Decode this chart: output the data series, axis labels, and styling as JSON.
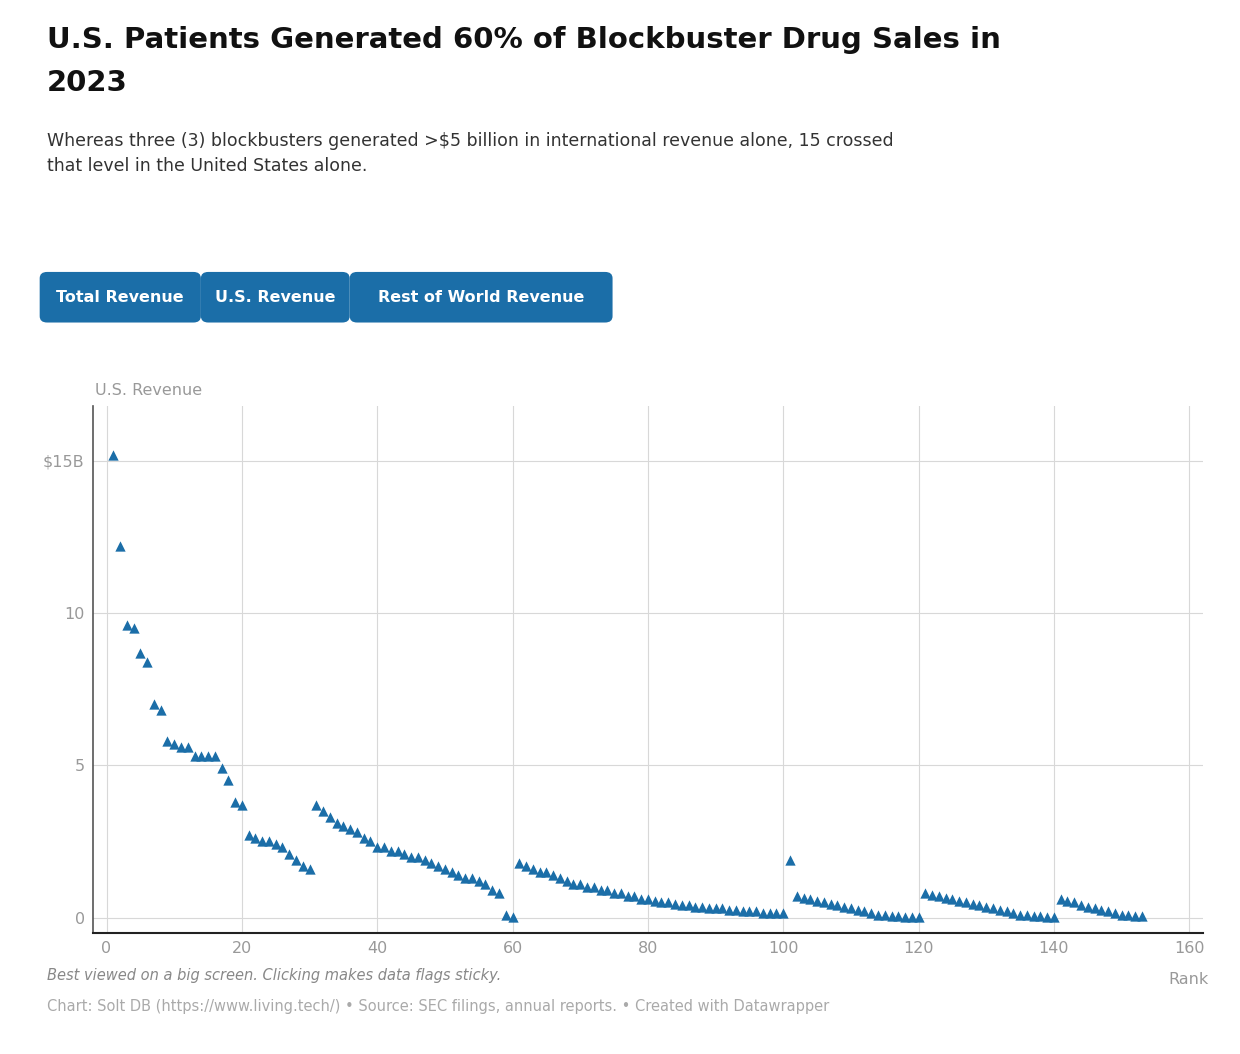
{
  "title_line1": "U.S. Patients Generated 60% of Blockbuster Drug Sales in",
  "title_line2": "2023",
  "subtitle": "Whereas three (3) blockbusters generated >$5 billion in international revenue alone, 15 crossed\nthat level in the United States alone.",
  "ylabel": "U.S. Revenue",
  "xlabel": "Rank",
  "legend_labels": [
    "Total Revenue",
    "U.S. Revenue",
    "Rest of World Revenue"
  ],
  "legend_color": "#1b6ea8",
  "marker_color": "#1b6ea8",
  "background_color": "#ffffff",
  "grid_color": "#d8d8d8",
  "axis_label_color": "#999999",
  "footer_italic": "Best viewed on a big screen. Clicking makes data flags sticky.",
  "footer_source": "Chart: Solt DB (https://www.living.tech/) • Source: SEC filings, annual reports. • Created with Datawrapper",
  "xlim": [
    -2,
    162
  ],
  "ylim": [
    -0.5,
    16.8
  ],
  "yticks": [
    0,
    5,
    10,
    15
  ],
  "ytick_labels": [
    "0",
    "5",
    "10",
    "$15B"
  ],
  "xticks": [
    0,
    20,
    40,
    60,
    80,
    100,
    120,
    140,
    160
  ],
  "x_data": [
    1,
    2,
    3,
    4,
    5,
    6,
    7,
    8,
    9,
    10,
    11,
    12,
    13,
    14,
    15,
    16,
    17,
    18,
    19,
    20,
    21,
    22,
    23,
    24,
    25,
    26,
    27,
    28,
    29,
    30,
    31,
    32,
    33,
    34,
    35,
    36,
    37,
    38,
    39,
    40,
    41,
    42,
    43,
    44,
    45,
    46,
    47,
    48,
    49,
    50,
    51,
    52,
    53,
    54,
    55,
    56,
    57,
    58,
    59,
    60,
    61,
    62,
    63,
    64,
    65,
    66,
    67,
    68,
    69,
    70,
    71,
    72,
    73,
    74,
    75,
    76,
    77,
    78,
    79,
    80,
    81,
    82,
    83,
    84,
    85,
    86,
    87,
    88,
    89,
    90,
    91,
    92,
    93,
    94,
    95,
    96,
    97,
    98,
    99,
    100,
    101,
    102,
    103,
    104,
    105,
    106,
    107,
    108,
    109,
    110,
    111,
    112,
    113,
    114,
    115,
    116,
    117,
    118,
    119,
    120,
    121,
    122,
    123,
    124,
    125,
    126,
    127,
    128,
    129,
    130,
    131,
    132,
    133,
    134,
    135,
    136,
    137,
    138,
    139,
    140,
    141,
    142,
    143,
    144,
    145,
    146,
    147,
    148,
    149,
    150,
    151,
    152,
    153
  ],
  "y_data": [
    15.2,
    12.2,
    9.6,
    9.5,
    8.7,
    8.4,
    7.0,
    6.8,
    5.8,
    5.7,
    5.6,
    5.6,
    5.3,
    5.3,
    5.3,
    5.3,
    4.9,
    4.5,
    3.8,
    3.7,
    2.7,
    2.6,
    2.5,
    2.5,
    2.4,
    2.3,
    2.1,
    1.9,
    1.7,
    1.6,
    3.7,
    3.5,
    3.3,
    3.1,
    3.0,
    2.9,
    2.8,
    2.6,
    2.5,
    2.3,
    2.3,
    2.2,
    2.2,
    2.1,
    2.0,
    2.0,
    1.9,
    1.8,
    1.7,
    1.6,
    1.5,
    1.4,
    1.3,
    1.3,
    1.2,
    1.1,
    0.9,
    0.8,
    0.1,
    0.02,
    1.8,
    1.7,
    1.6,
    1.5,
    1.5,
    1.4,
    1.3,
    1.2,
    1.1,
    1.1,
    1.0,
    1.0,
    0.9,
    0.9,
    0.8,
    0.8,
    0.7,
    0.7,
    0.6,
    0.6,
    0.55,
    0.5,
    0.5,
    0.45,
    0.4,
    0.4,
    0.35,
    0.35,
    0.3,
    0.3,
    0.3,
    0.25,
    0.25,
    0.2,
    0.2,
    0.2,
    0.15,
    0.15,
    0.15,
    0.15,
    1.9,
    0.7,
    0.65,
    0.6,
    0.55,
    0.5,
    0.45,
    0.4,
    0.35,
    0.3,
    0.25,
    0.2,
    0.15,
    0.1,
    0.07,
    0.05,
    0.04,
    0.03,
    0.02,
    0.01,
    0.8,
    0.75,
    0.7,
    0.65,
    0.6,
    0.55,
    0.5,
    0.45,
    0.4,
    0.35,
    0.3,
    0.25,
    0.2,
    0.15,
    0.1,
    0.08,
    0.06,
    0.04,
    0.02,
    0.01,
    0.6,
    0.55,
    0.5,
    0.4,
    0.35,
    0.3,
    0.25,
    0.2,
    0.15,
    0.1,
    0.08,
    0.06,
    0.05
  ]
}
